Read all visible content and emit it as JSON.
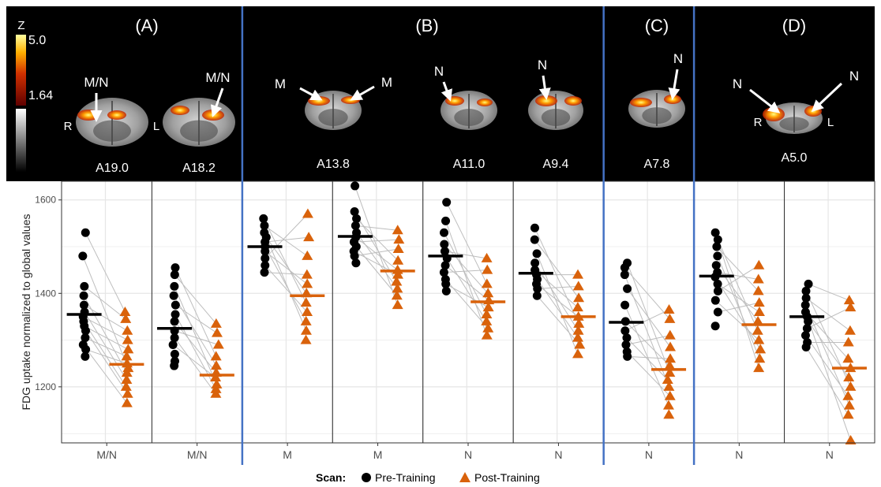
{
  "header": {
    "panels": [
      {
        "letter": "(A)"
      },
      {
        "letter": "(B)"
      },
      {
        "letter": "(C)"
      },
      {
        "letter": "(D)"
      }
    ],
    "colorbar": {
      "title": "Z",
      "max_label": "5.0",
      "min_label": "1.64"
    },
    "slices": [
      {
        "label": "A19.0",
        "arrows": [
          "M/N"
        ],
        "side_left": "R",
        "side_right": "L"
      },
      {
        "label": "A18.2",
        "arrows": [
          "M/N"
        ]
      },
      {
        "label": "A13.8",
        "arrows": [
          "M",
          "M"
        ]
      },
      {
        "label": "A11.0",
        "arrows": [
          "N"
        ]
      },
      {
        "label": "A9.4",
        "arrows": [
          "N"
        ]
      },
      {
        "label": "A7.8",
        "arrows": [
          "N"
        ]
      },
      {
        "label": "A5.0",
        "arrows": [
          "N",
          "N"
        ],
        "side_left": "R",
        "side_right": "L"
      }
    ]
  },
  "colors": {
    "pre": "#000000",
    "post": "#d9620b",
    "divider": "#4472c4",
    "paired_line": "#bdbdbd",
    "grid": "#e6e6e6"
  },
  "chart_data": {
    "type": "scatter",
    "ylabel": "FDG uptake normalized to global values",
    "ylim": [
      1080,
      1640
    ],
    "yticks": [
      1200,
      1400,
      1600
    ],
    "grid": true,
    "legend": {
      "title": "Scan:",
      "placement": "bottom",
      "entries": [
        {
          "name": "Pre-Training",
          "shape": "circle"
        },
        {
          "name": "Post-Training",
          "shape": "triangle"
        }
      ]
    },
    "facets": [
      {
        "label": "M/N",
        "pre_mean": 1355,
        "post_mean": 1248,
        "pre": [
          1530,
          1480,
          1415,
          1395,
          1375,
          1360,
          1350,
          1340,
          1330,
          1320,
          1305,
          1290,
          1280,
          1265
        ],
        "post": [
          1360,
          1345,
          1320,
          1300,
          1280,
          1265,
          1250,
          1240,
          1230,
          1215,
          1200,
          1185,
          1165
        ]
      },
      {
        "label": "M/N",
        "pre_mean": 1325,
        "post_mean": 1225,
        "pre": [
          1455,
          1440,
          1415,
          1395,
          1375,
          1355,
          1340,
          1320,
          1305,
          1290,
          1270,
          1255,
          1245
        ],
        "post": [
          1335,
          1315,
          1290,
          1265,
          1245,
          1230,
          1220,
          1205,
          1195,
          1185
        ]
      },
      {
        "label": "M",
        "pre_mean": 1500,
        "post_mean": 1395,
        "pre": [
          1560,
          1545,
          1530,
          1520,
          1510,
          1500,
          1490,
          1475,
          1460,
          1445
        ],
        "post": [
          1570,
          1520,
          1480,
          1440,
          1420,
          1400,
          1380,
          1360,
          1340,
          1320,
          1300
        ]
      },
      {
        "label": "M",
        "pre_mean": 1522,
        "post_mean": 1448,
        "pre": [
          1630,
          1575,
          1560,
          1545,
          1530,
          1520,
          1510,
          1500,
          1490,
          1480,
          1465
        ],
        "post": [
          1535,
          1515,
          1495,
          1470,
          1450,
          1440,
          1425,
          1410,
          1395,
          1375
        ]
      },
      {
        "label": "N",
        "pre_mean": 1480,
        "post_mean": 1382,
        "pre": [
          1595,
          1555,
          1530,
          1505,
          1490,
          1475,
          1460,
          1445,
          1430,
          1420,
          1405
        ],
        "post": [
          1475,
          1450,
          1420,
          1400,
          1385,
          1370,
          1355,
          1340,
          1325,
          1310
        ]
      },
      {
        "label": "N",
        "pre_mean": 1443,
        "post_mean": 1350,
        "pre": [
          1540,
          1515,
          1485,
          1465,
          1450,
          1440,
          1430,
          1420,
          1410,
          1395
        ],
        "post": [
          1440,
          1415,
          1390,
          1370,
          1350,
          1335,
          1320,
          1305,
          1290,
          1270
        ]
      },
      {
        "label": "N",
        "pre_mean": 1338,
        "post_mean": 1237,
        "pre": [
          1465,
          1455,
          1440,
          1410,
          1375,
          1340,
          1320,
          1305,
          1290,
          1275,
          1265
        ],
        "post": [
          1365,
          1345,
          1310,
          1285,
          1260,
          1245,
          1230,
          1215,
          1200,
          1180,
          1160,
          1140
        ]
      },
      {
        "label": "N",
        "pre_mean": 1437,
        "post_mean": 1333,
        "pre": [
          1530,
          1515,
          1500,
          1480,
          1460,
          1445,
          1435,
          1420,
          1405,
          1385,
          1360,
          1330
        ],
        "post": [
          1460,
          1430,
          1405,
          1380,
          1360,
          1340,
          1320,
          1300,
          1280,
          1260,
          1240
        ]
      },
      {
        "label": "N",
        "pre_mean": 1350,
        "post_mean": 1240,
        "pre": [
          1420,
          1405,
          1390,
          1375,
          1360,
          1350,
          1340,
          1325,
          1310,
          1295,
          1285
        ],
        "post": [
          1385,
          1370,
          1320,
          1295,
          1260,
          1240,
          1220,
          1200,
          1180,
          1160,
          1140,
          1085
        ]
      }
    ]
  }
}
